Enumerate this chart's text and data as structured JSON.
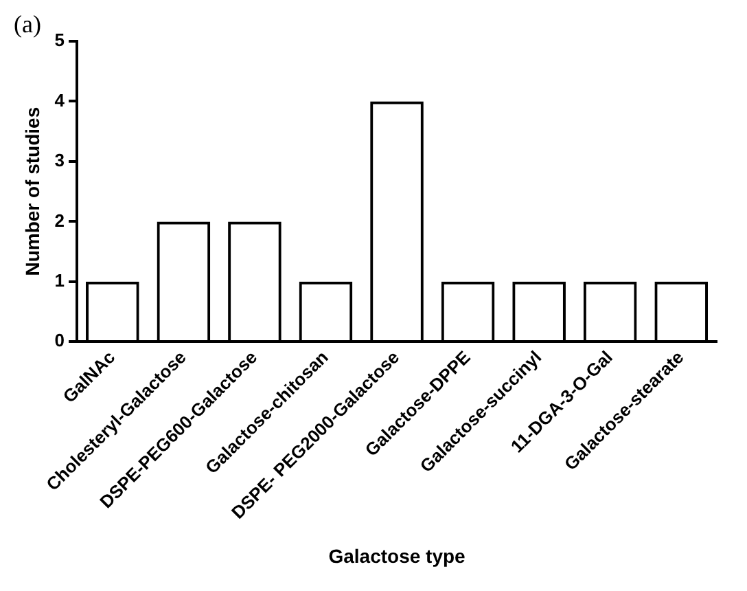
{
  "chart_data": {
    "type": "bar",
    "xlabel": "Galactose type",
    "ylabel": "Number of studies",
    "annotations": [
      "(a)"
    ],
    "categories": [
      "GalNAc",
      "Cholesteryl-Galactose",
      "DSPE-PEG600-Galactose",
      "Galactose-chitosan",
      "DSPE- PEG2000-Galactose",
      "Galactose-DPPE",
      "Galactose-succinyl",
      "11-DGA-3-O-Gal",
      "Galactose-stearate"
    ],
    "values": [
      1,
      2,
      2,
      1,
      4,
      1,
      1,
      1,
      1
    ],
    "color": "#000000",
    "ylim": [
      0,
      5
    ],
    "yticks": [
      0,
      1,
      2,
      3,
      4,
      5
    ],
    "grid": false,
    "legend": false
  }
}
